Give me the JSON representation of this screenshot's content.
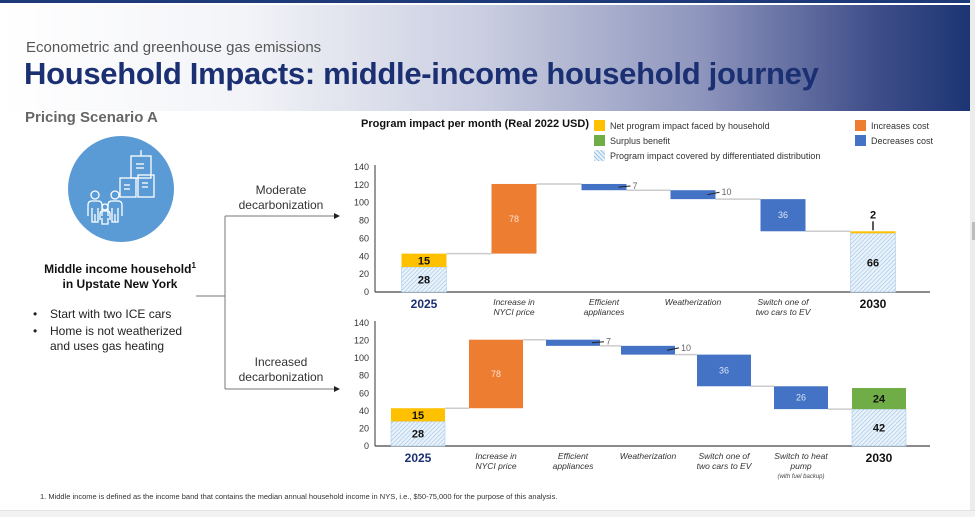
{
  "header": {
    "subtitle": "Econometric and greenhouse gas emissions",
    "title": "Household Impacts: middle-income household journey"
  },
  "scenario_label": "Pricing Scenario A",
  "household": {
    "icon": "family-buildings-icon",
    "title_line1": "Middle income household",
    "title_sup": "1",
    "title_line2": "in Upstate New York",
    "bullets": [
      "Start with two ICE cars",
      "Home is not weatherized and uses gas heating"
    ]
  },
  "branches": {
    "moderate": [
      "Moderate",
      "decarbonization"
    ],
    "increased": [
      "Increased",
      "decarbonization"
    ]
  },
  "colors": {
    "net_impact": "#FFC000",
    "surplus": "#70AD47",
    "increase": "#ED7D31",
    "decrease": "#4472C4",
    "covered": "#DDEBF7",
    "covered_hatch": "#9DC3E6",
    "title": "#1B2F73"
  },
  "legend": {
    "net": "Net program impact faced by household",
    "surplus": "Surplus benefit",
    "covered": "Program impact covered by differentiated distribution",
    "increase": "Increases cost",
    "decrease": "Decreases cost"
  },
  "footnote": "1.  Middle income is defined as the income band that contains the median annual household income in NYS, i.e., $50-75,000 for the purpose of this analysis.",
  "chart_data": [
    {
      "type": "waterfall",
      "title": "Program impact per month (Real 2022 USD)",
      "scenario": "Moderate decarbonization",
      "ylim": [
        0,
        140
      ],
      "yticks": [
        0,
        20,
        40,
        60,
        80,
        100,
        120,
        140
      ],
      "categories": [
        "2025",
        "Increase in NYCI price",
        "Efficient appliances",
        "Weatherization",
        "Switch one of two cars to EV",
        "2030"
      ],
      "category_lines": [
        [
          "2025"
        ],
        [
          "Increase in",
          "NYCI price"
        ],
        [
          "Efficient",
          "appliances"
        ],
        [
          "Weatherization"
        ],
        [
          "Switch one of",
          "two cars to EV"
        ],
        [
          "2030"
        ]
      ],
      "bars": [
        {
          "kind": "total",
          "segments": [
            {
              "type": "covered",
              "value": 28
            },
            {
              "type": "net",
              "value": 15
            }
          ]
        },
        {
          "kind": "increase",
          "value": 78
        },
        {
          "kind": "decrease",
          "value": 7
        },
        {
          "kind": "decrease",
          "value": 10
        },
        {
          "kind": "decrease",
          "value": 36
        },
        {
          "kind": "total",
          "segments": [
            {
              "type": "covered",
              "value": 66
            },
            {
              "type": "net",
              "value": 2
            }
          ]
        }
      ]
    },
    {
      "type": "waterfall",
      "scenario": "Increased decarbonization",
      "ylim": [
        0,
        140
      ],
      "yticks": [
        0,
        20,
        40,
        60,
        80,
        100,
        120,
        140
      ],
      "categories": [
        "2025",
        "Increase in NYCI price",
        "Efficient appliances",
        "Weatherization",
        "Switch one of two cars to EV",
        "Switch to heat pump (with fuel backup)",
        "2030"
      ],
      "category_lines": [
        [
          "2025"
        ],
        [
          "Increase in",
          "NYCI price"
        ],
        [
          "Efficient",
          "appliances"
        ],
        [
          "Weatherization"
        ],
        [
          "Switch one of",
          "two cars to EV"
        ],
        [
          "Switch to heat",
          "pump"
        ],
        [
          "2030"
        ]
      ],
      "category_notes": [
        "",
        "",
        "",
        "",
        "",
        "(with fuel backup)",
        ""
      ],
      "bars": [
        {
          "kind": "total",
          "segments": [
            {
              "type": "covered",
              "value": 28
            },
            {
              "type": "net",
              "value": 15
            }
          ]
        },
        {
          "kind": "increase",
          "value": 78
        },
        {
          "kind": "decrease",
          "value": 7
        },
        {
          "kind": "decrease",
          "value": 10
        },
        {
          "kind": "decrease",
          "value": 36
        },
        {
          "kind": "decrease",
          "value": 26
        },
        {
          "kind": "total",
          "segments": [
            {
              "type": "covered",
              "value": 42
            },
            {
              "type": "surplus",
              "value": 24
            }
          ]
        }
      ]
    }
  ]
}
